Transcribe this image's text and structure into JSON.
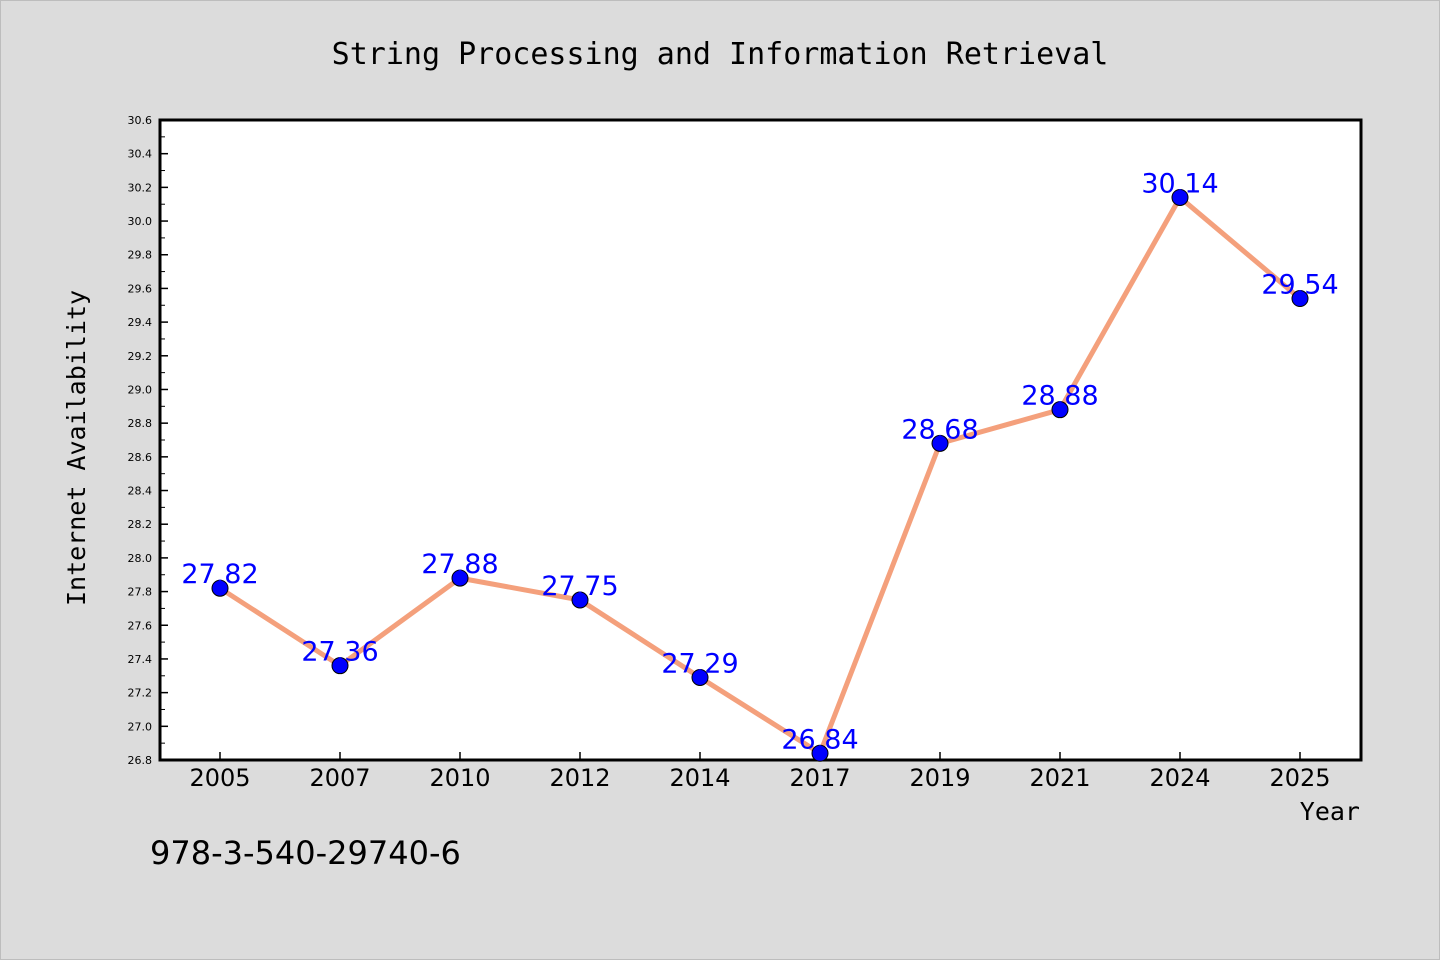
{
  "colors": {
    "background": "#dcdcdc",
    "plot_background": "#ffffff",
    "line": "#f4a07c",
    "marker": "#0000ff",
    "label": "#0000ff"
  },
  "note": "978-3-540-29740-6",
  "chart_data": {
    "type": "line",
    "title": "String Processing and Information Retrieval",
    "xlabel": "Year",
    "ylabel": "Internet Availability",
    "categories": [
      "2005",
      "2007",
      "2010",
      "2012",
      "2014",
      "2017",
      "2019",
      "2021",
      "2024",
      "2025"
    ],
    "series": [
      {
        "values": [
          27.82,
          27.36,
          27.88,
          27.75,
          27.29,
          26.84,
          28.68,
          28.88,
          30.14,
          29.54
        ],
        "labels": [
          "27.82",
          "27.36",
          "27.88",
          "27.75",
          "27.29",
          "26.84",
          "28.68",
          "28.88",
          "30.14",
          "29.54"
        ]
      }
    ],
    "ylim": [
      26.8,
      30.6
    ],
    "yticks": [
      "26.8",
      "27.0",
      "27.2",
      "27.4",
      "27.6",
      "27.8",
      "28.0",
      "28.2",
      "28.4",
      "28.6",
      "28.8",
      "29.0",
      "29.2",
      "29.4",
      "29.6",
      "29.8",
      "30.0",
      "30.2",
      "30.4",
      "30.6"
    ],
    "grid": false,
    "legend": "none"
  }
}
